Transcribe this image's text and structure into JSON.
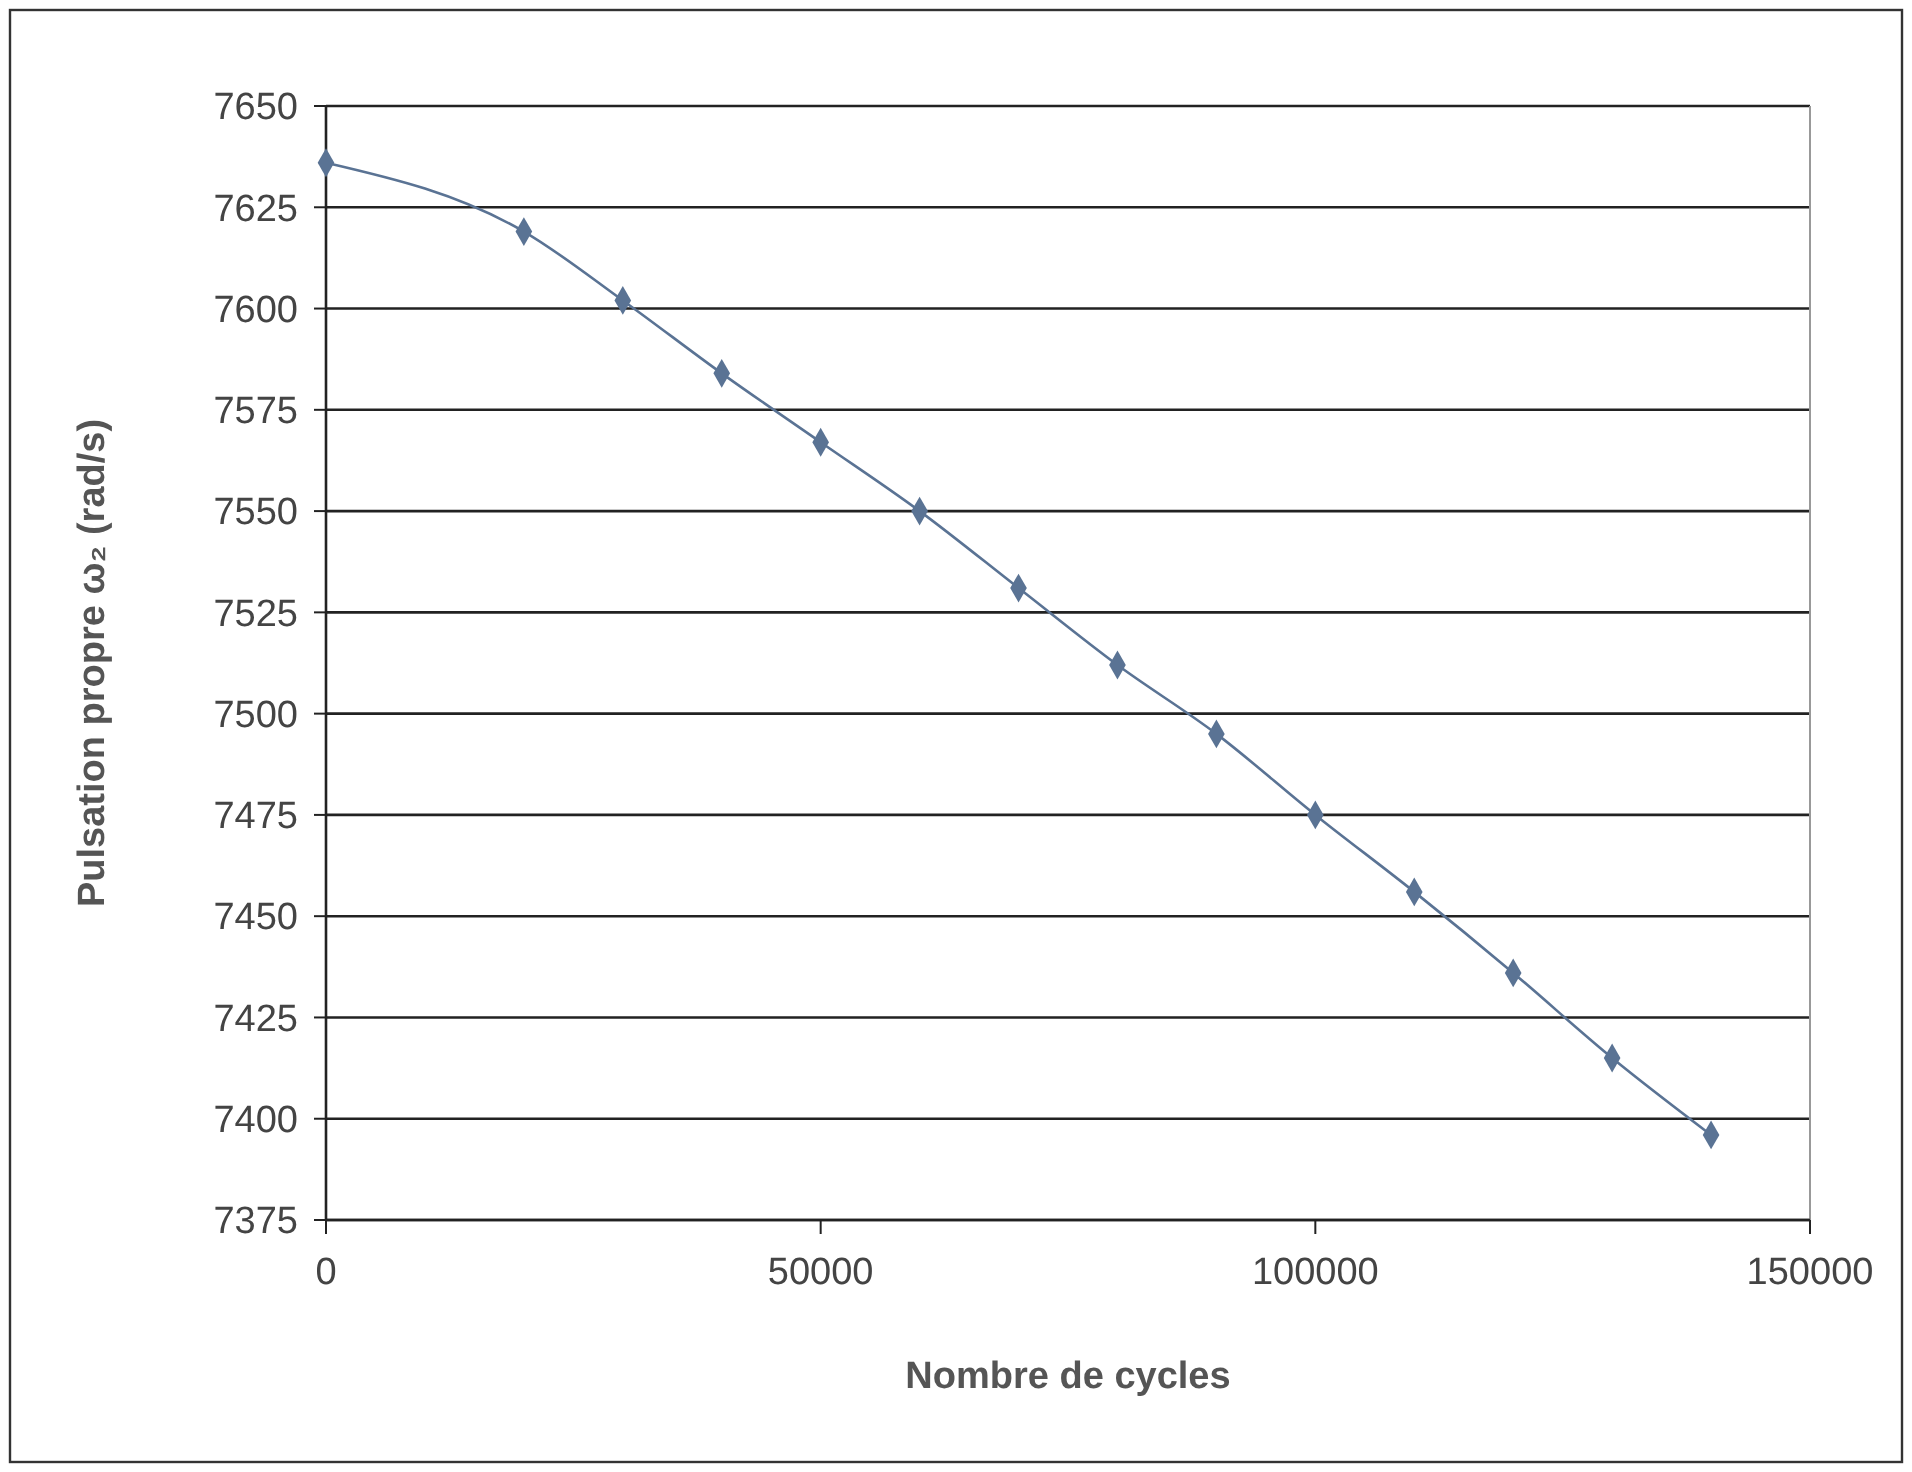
{
  "chart_data": {
    "type": "line",
    "xlabel": "Nombre de cycles",
    "ylabel": "Pulsation propre ω₂ (rad/s)",
    "x": [
      0,
      20000,
      30000,
      40000,
      50000,
      60000,
      70000,
      80000,
      90000,
      100000,
      110000,
      120000,
      130000,
      140000
    ],
    "series": [
      {
        "color": "#5a7394",
        "values": [
          7636,
          7619,
          7602,
          7584,
          7567,
          7550,
          7531,
          7512,
          7495,
          7475,
          7456,
          7436,
          7415,
          7396
        ]
      }
    ],
    "xlim": [
      0,
      150000
    ],
    "xticks": [
      0,
      50000,
      100000,
      150000
    ],
    "ylim": [
      7375,
      7650
    ],
    "yticks": [
      7375,
      7400,
      7425,
      7450,
      7475,
      7500,
      7525,
      7550,
      7575,
      7600,
      7625,
      7650
    ],
    "grid": "y",
    "marker": "diamond",
    "line_style": "solid"
  }
}
